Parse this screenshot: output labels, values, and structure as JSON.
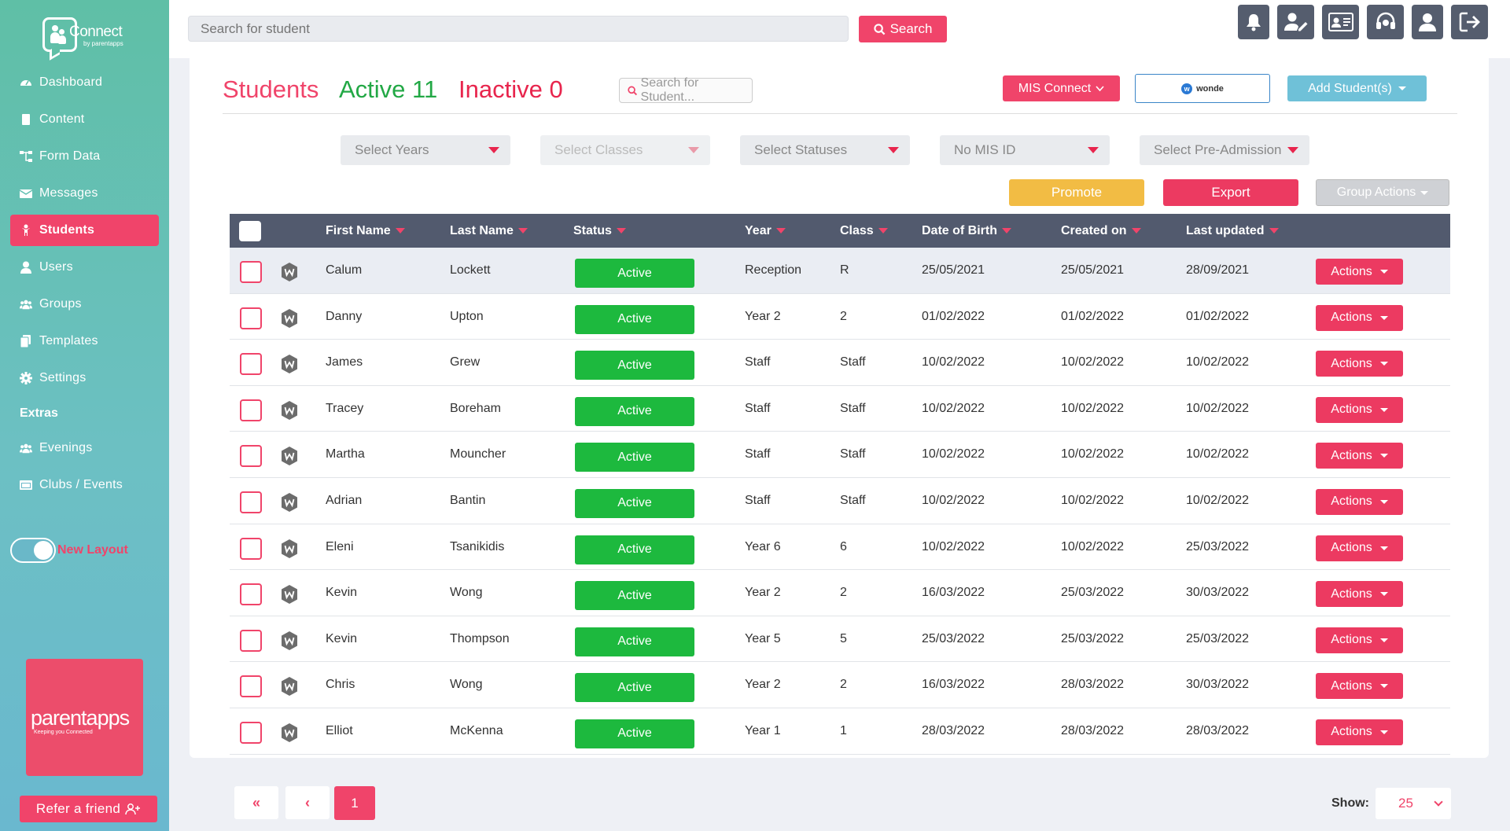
{
  "sidebar": {
    "logo_text": "Connect",
    "logo_sub": "by parentapps",
    "items": [
      {
        "label": "Dashboard",
        "icon": "dashboard-icon"
      },
      {
        "label": "Content",
        "icon": "document-icon"
      },
      {
        "label": "Form Data",
        "icon": "sitemap-icon"
      },
      {
        "label": "Messages",
        "icon": "envelope-icon"
      },
      {
        "label": "Students",
        "icon": "child-icon",
        "active": true
      },
      {
        "label": "Users",
        "icon": "user-icon"
      },
      {
        "label": "Groups",
        "icon": "users-icon"
      },
      {
        "label": "Templates",
        "icon": "copy-icon"
      },
      {
        "label": "Settings",
        "icon": "gear-icon"
      }
    ],
    "extras_heading": "Extras",
    "extras": [
      {
        "label": "Evenings",
        "icon": "users-icon"
      },
      {
        "label": "Clubs / Events",
        "icon": "calendar-icon"
      }
    ],
    "toggle_label": "New Layout",
    "promo_text": "parentapps",
    "promo_sub": "Keeping you Connected",
    "refer_label": "Refer a friend"
  },
  "topbar": {
    "search_placeholder": "Search for student",
    "search_button": "Search",
    "icons": [
      "bell-icon",
      "user-edit-icon",
      "id-card-icon",
      "headset-icon",
      "user-profile-icon",
      "logout-icon"
    ]
  },
  "header": {
    "title": "Students",
    "active": "Active 11",
    "inactive": "Inactive 0",
    "search_placeholder": "Search for Student...",
    "mis_connect": "MIS Connect",
    "wonde": "wonde",
    "add_students": "Add Student(s)"
  },
  "filters": [
    {
      "label": "Select Years",
      "disabled": false
    },
    {
      "label": "Select Classes",
      "disabled": true
    },
    {
      "label": "Select Statuses",
      "disabled": false
    },
    {
      "label": "No MIS ID",
      "disabled": false
    },
    {
      "label": "Select Pre-Admission",
      "disabled": false
    }
  ],
  "bulk": {
    "promote": "Promote",
    "export": "Export",
    "group_actions": "Group Actions"
  },
  "table": {
    "columns": [
      "First Name",
      "Last Name",
      "Status",
      "Year",
      "Class",
      "Date of Birth",
      "Created on",
      "Last updated"
    ],
    "actions_label": "Actions",
    "rows": [
      {
        "first": "Calum",
        "last": "Lockett",
        "status": "Active",
        "year": "Reception",
        "class": "R",
        "dob": "25/05/2021",
        "created": "25/05/2021",
        "updated": "28/09/2021"
      },
      {
        "first": "Danny",
        "last": "Upton",
        "status": "Active",
        "year": "Year 2",
        "class": "2",
        "dob": "01/02/2022",
        "created": "01/02/2022",
        "updated": "01/02/2022"
      },
      {
        "first": "James",
        "last": "Grew",
        "status": "Active",
        "year": "Staff",
        "class": "Staff",
        "dob": "10/02/2022",
        "created": "10/02/2022",
        "updated": "10/02/2022"
      },
      {
        "first": "Tracey",
        "last": "Boreham",
        "status": "Active",
        "year": "Staff",
        "class": "Staff",
        "dob": "10/02/2022",
        "created": "10/02/2022",
        "updated": "10/02/2022"
      },
      {
        "first": "Martha",
        "last": "Mouncher",
        "status": "Active",
        "year": "Staff",
        "class": "Staff",
        "dob": "10/02/2022",
        "created": "10/02/2022",
        "updated": "10/02/2022"
      },
      {
        "first": "Adrian",
        "last": "Bantin",
        "status": "Active",
        "year": "Staff",
        "class": "Staff",
        "dob": "10/02/2022",
        "created": "10/02/2022",
        "updated": "10/02/2022"
      },
      {
        "first": "Eleni",
        "last": "Tsanikidis",
        "status": "Active",
        "year": "Year 6",
        "class": "6",
        "dob": "10/02/2022",
        "created": "10/02/2022",
        "updated": "25/03/2022"
      },
      {
        "first": "Kevin",
        "last": "Wong",
        "status": "Active",
        "year": "Year 2",
        "class": "2",
        "dob": "16/03/2022",
        "created": "25/03/2022",
        "updated": "30/03/2022"
      },
      {
        "first": "Kevin",
        "last": "Thompson",
        "status": "Active",
        "year": "Year 5",
        "class": "5",
        "dob": "25/03/2022",
        "created": "25/03/2022",
        "updated": "25/03/2022"
      },
      {
        "first": "Chris",
        "last": "Wong",
        "status": "Active",
        "year": "Year 2",
        "class": "2",
        "dob": "16/03/2022",
        "created": "28/03/2022",
        "updated": "30/03/2022"
      },
      {
        "first": "Elliot",
        "last": "McKenna",
        "status": "Active",
        "year": "Year 1",
        "class": "1",
        "dob": "28/03/2022",
        "created": "28/03/2022",
        "updated": "28/03/2022"
      }
    ]
  },
  "pagination": {
    "first": "«",
    "prev": "‹",
    "current": "1",
    "show_label": "Show:",
    "show_value": "25"
  },
  "colors": {
    "accent": "#f0446a",
    "active_green": "#1db93e",
    "header_dark": "#525a6e",
    "promote": "#f2bc44",
    "add_blue": "#6fc1d8"
  }
}
